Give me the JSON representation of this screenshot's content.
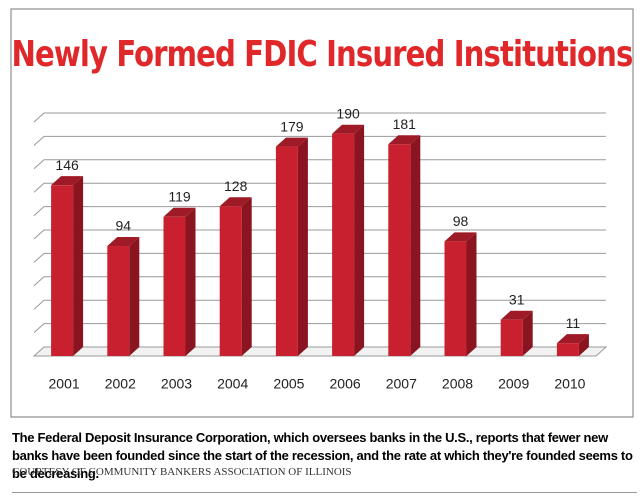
{
  "chart_data": {
    "type": "bar3d",
    "title": "Newly Formed FDIC Insured Institutions",
    "categories": [
      "2001",
      "2002",
      "2003",
      "2004",
      "2005",
      "2006",
      "2007",
      "2008",
      "2009",
      "2010"
    ],
    "values": [
      146,
      94,
      119,
      128,
      179,
      190,
      181,
      98,
      31,
      11
    ],
    "color": "#c8202f",
    "title_color": "#e0282a",
    "ylim": [
      0,
      200
    ],
    "yticks": [
      0,
      20,
      40,
      60,
      80,
      100,
      120,
      140,
      160,
      180,
      200
    ],
    "grid": true
  },
  "caption": "The Federal Deposit Insurance Corporation, which oversees banks in the U.S., reports that fewer new banks have been founded since the start of the recession, and the rate at which they're founded seems to be decreasing.",
  "credit": "COURTESY OF COMMUNITY BANKERS ASSOCIATION OF ILLINOIS"
}
